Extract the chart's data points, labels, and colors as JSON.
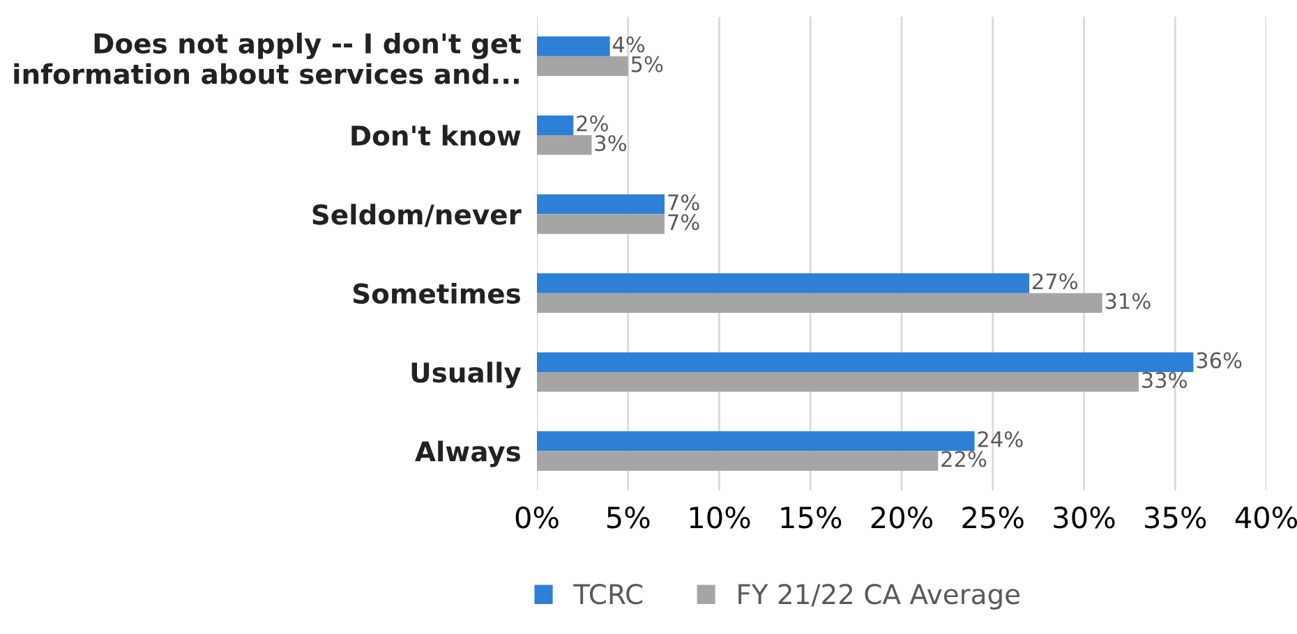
{
  "chart_data": {
    "type": "bar",
    "orientation": "horizontal",
    "categories": [
      "Does not apply -- I don't get\ninformation about services and...",
      "Don't know",
      "Seldom/never",
      "Sometimes",
      "Usually",
      "Always"
    ],
    "series": [
      {
        "name": "TCRC",
        "color": "#2e7fd6",
        "values": [
          4,
          2,
          7,
          27,
          36,
          24
        ],
        "value_labels": [
          "4%",
          "2%",
          "7%",
          "27%",
          "36%",
          "24%"
        ]
      },
      {
        "name": "FY 21/22 CA Average",
        "color": "#a5a5a5",
        "values": [
          5,
          3,
          7,
          31,
          33,
          22
        ],
        "value_labels": [
          "5%",
          "3%",
          "7%",
          "31%",
          "33%",
          "22%"
        ]
      }
    ],
    "xlim": [
      0,
      40
    ],
    "xticks": [
      {
        "value": 0,
        "label": "0%"
      },
      {
        "value": 5,
        "label": "5%"
      },
      {
        "value": 10,
        "label": "10%"
      },
      {
        "value": 15,
        "label": "15%"
      },
      {
        "value": 20,
        "label": "20%"
      },
      {
        "value": 25,
        "label": "25%"
      },
      {
        "value": 30,
        "label": "30%"
      },
      {
        "value": 35,
        "label": "35%"
      },
      {
        "value": 40,
        "label": "40%"
      }
    ],
    "grid": "x",
    "legend": "bottom"
  }
}
